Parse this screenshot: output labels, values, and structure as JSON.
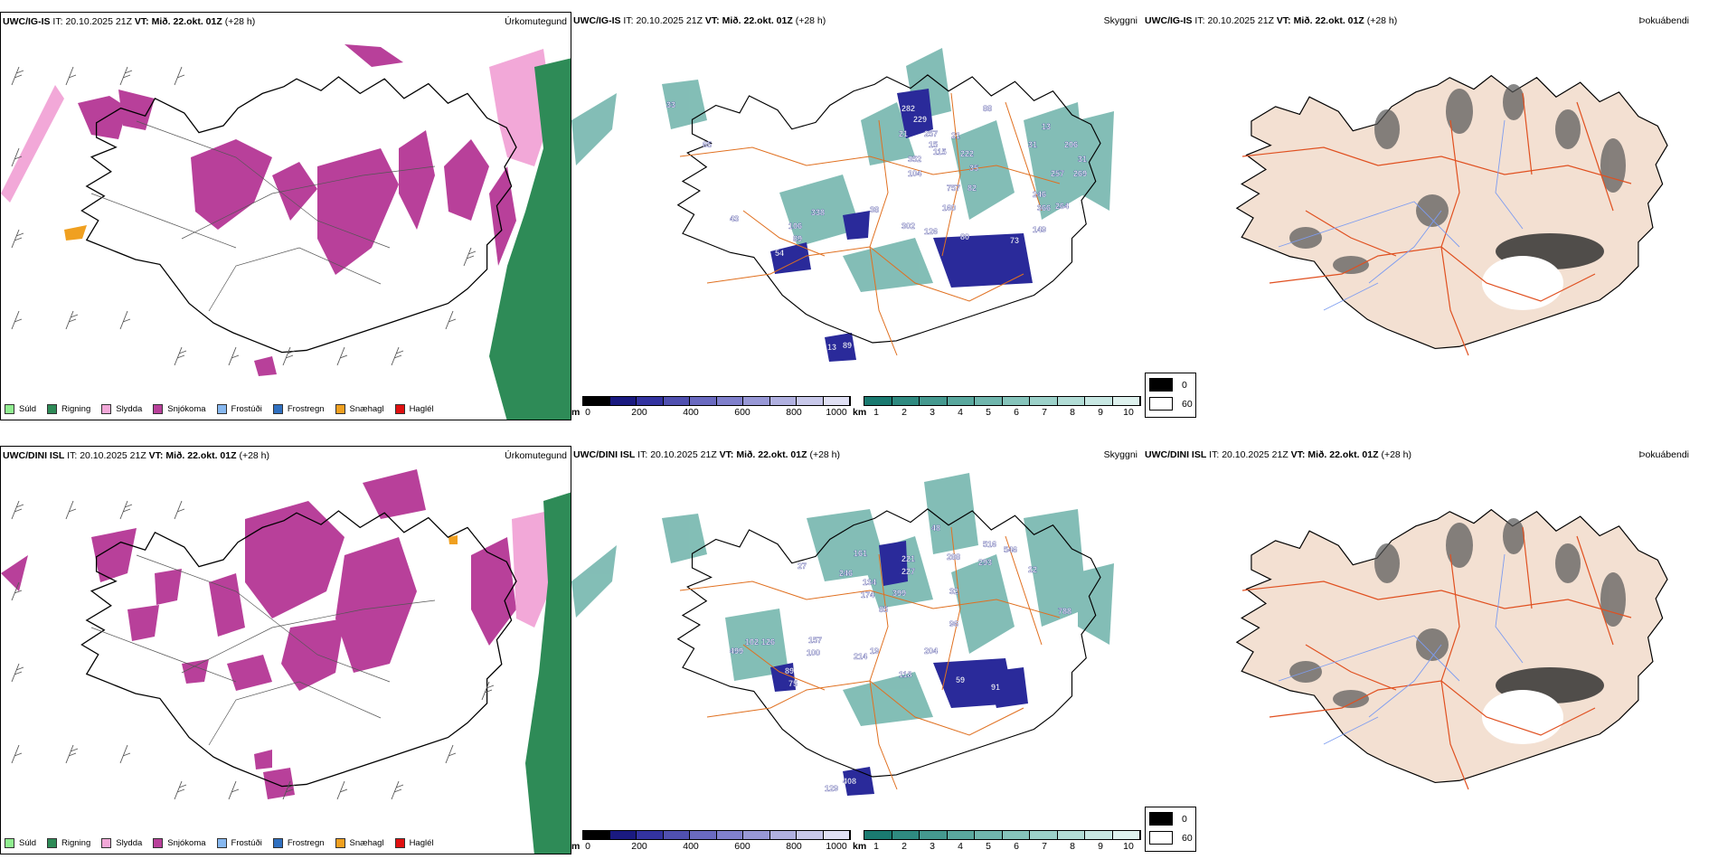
{
  "rows": [
    {
      "model": "UWC/IG-IS",
      "it_label": "IT:",
      "it_value": "20.10.2025 21Z",
      "vt_label": "VT:",
      "vt_value": "Mið. 22.okt. 01Z",
      "lead": "(+28 h)",
      "precip_title": "Úrkomutegund",
      "cloud_title": "Skyggni",
      "fog_title": "Þokuábendi",
      "cloud_numbers": [
        "282",
        "229",
        "21",
        "257",
        "15",
        "352",
        "21",
        "88",
        "222",
        "31",
        "35",
        "13",
        "206",
        "31",
        "257",
        "269",
        "104",
        "115",
        "757",
        "82",
        "246",
        "366",
        "264",
        "338",
        "160",
        "106",
        "89",
        "302",
        "126",
        "80",
        "73",
        "149",
        "54",
        "43",
        "65",
        "33",
        "89",
        "13",
        "38"
      ]
    },
    {
      "model": "UWC/DINI ISL",
      "it_label": "IT:",
      "it_value": "20.10.2025 21Z",
      "vt_label": "VT:",
      "vt_value": "Mið. 22.okt. 01Z",
      "lead": "(+28 h)",
      "precip_title": "Úrkomutegund",
      "cloud_title": "Skyggni",
      "fog_title": "Þokuábendi",
      "cloud_numbers": [
        "48",
        "161",
        "516",
        "546",
        "27",
        "246",
        "221",
        "227",
        "288",
        "293",
        "134",
        "174",
        "399",
        "22",
        "32",
        "85",
        "96",
        "788",
        "102",
        "126",
        "157",
        "100",
        "214",
        "19",
        "204",
        "499",
        "89",
        "75",
        "59",
        "91",
        "118",
        "408",
        "129"
      ]
    }
  ],
  "precip_legend": [
    {
      "label": "Súld",
      "color": "#90ee90"
    },
    {
      "label": "Rigning",
      "color": "#2e8b57"
    },
    {
      "label": "Slydda",
      "color": "#f2a8d8"
    },
    {
      "label": "Snjókoma",
      "color": "#b8409a"
    },
    {
      "label": "Frostúði",
      "color": "#87b8f0"
    },
    {
      "label": "Frostregn",
      "color": "#3070c0"
    },
    {
      "label": "Snæhagl",
      "color": "#f0a020"
    },
    {
      "label": "Haglél",
      "color": "#e01010"
    }
  ],
  "ceiling_bar": {
    "unit": "m",
    "ticks": [
      "0",
      "200",
      "400",
      "600",
      "800",
      "1000"
    ],
    "colors": [
      "#000000",
      "#1a1a80",
      "#3333a0",
      "#5050b0",
      "#6a6ac0",
      "#8080cc",
      "#9898d6",
      "#b0b0e0",
      "#c8c8ea",
      "#e0e0f4"
    ]
  },
  "visibility_bar": {
    "unit": "km",
    "ticks": [
      "1",
      "2",
      "3",
      "4",
      "5",
      "6",
      "7",
      "8",
      "9",
      "10"
    ],
    "colors": [
      "#1a7a70",
      "#2f8a80",
      "#45998f",
      "#5aa89e",
      "#70b6ad",
      "#86c4bb",
      "#9cd1c9",
      "#b2ddd6",
      "#c8e8e3",
      "#def2ee"
    ]
  },
  "fog_legend": [
    {
      "label": "0",
      "color": "#000000"
    },
    {
      "label": "60",
      "color": "#ffffff"
    }
  ]
}
